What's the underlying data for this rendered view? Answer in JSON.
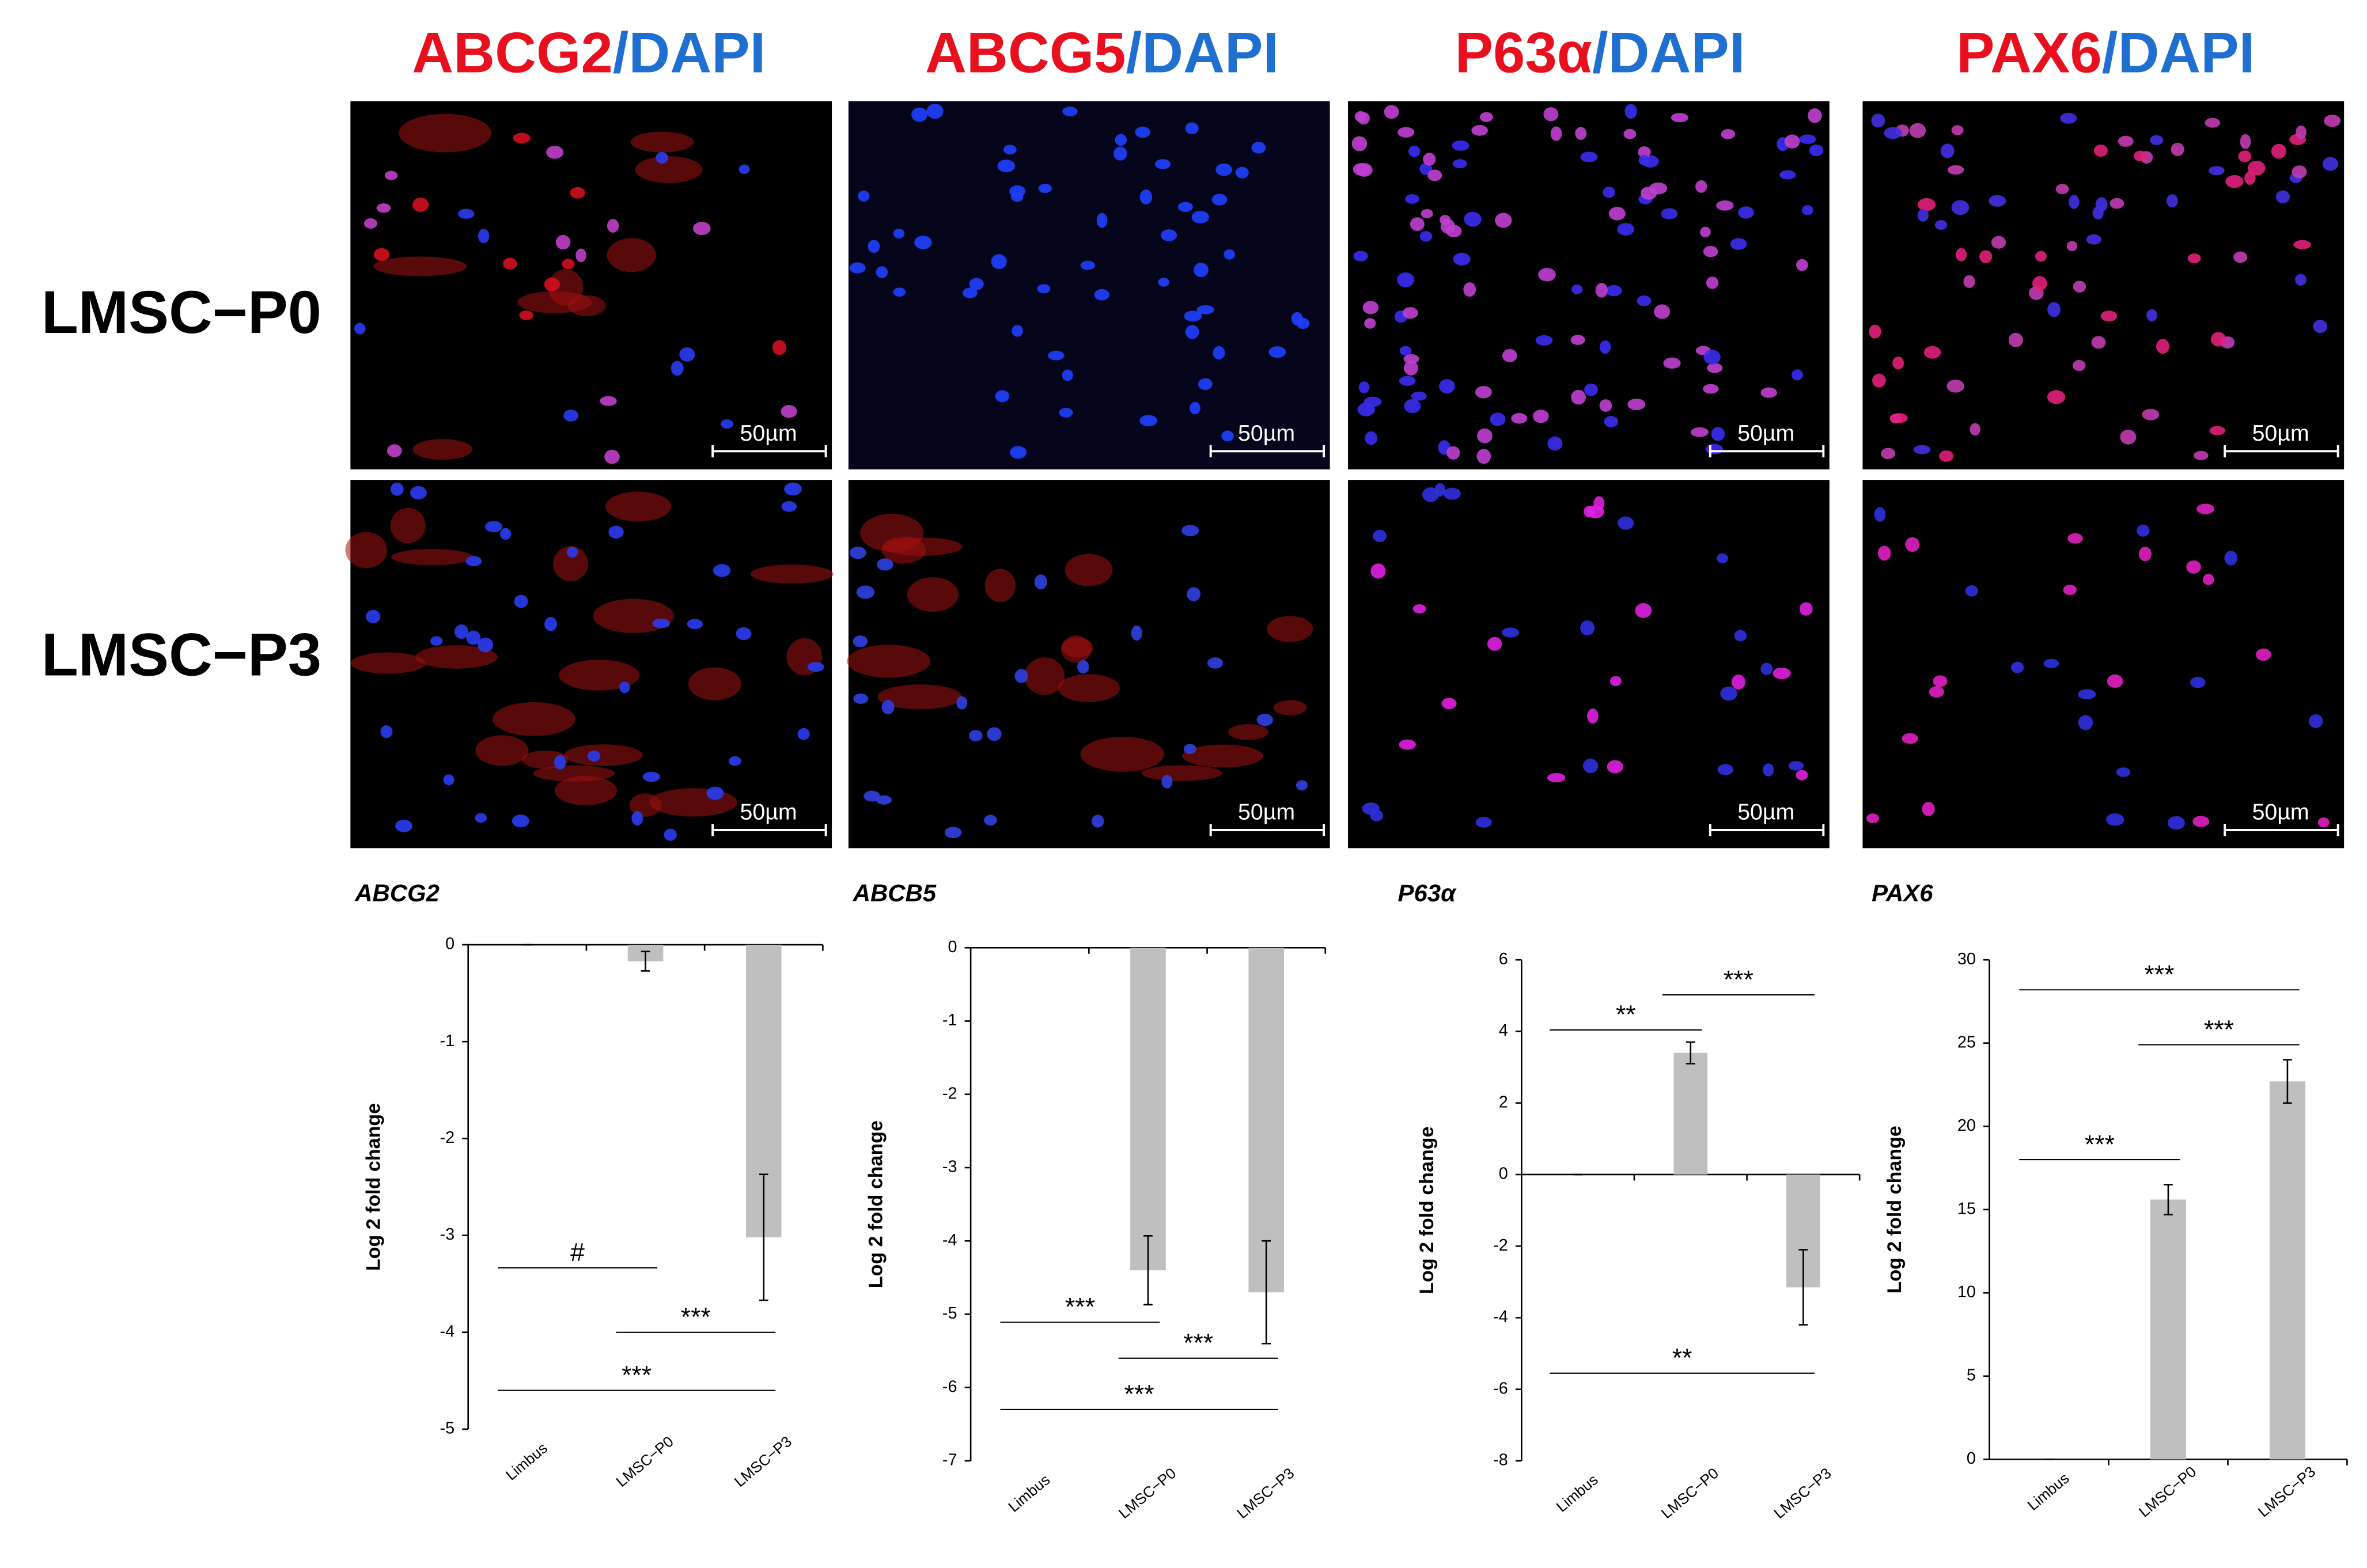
{
  "panels": {
    "titles": [
      {
        "marker": "ABCG2",
        "stain": "/DAPI"
      },
      {
        "marker": "ABCG5",
        "stain": "/DAPI"
      },
      {
        "marker": "P63α",
        "stain": "/DAPI"
      },
      {
        "marker": "PAX6",
        "stain": "/DAPI"
      }
    ],
    "rows": [
      "LMSC−P0",
      "LMSC−P3"
    ],
    "scale_bar": "50µm"
  },
  "chart_data": [
    {
      "type": "bar",
      "title": "ABCG2",
      "y_label": "Log 2 fold change",
      "categories": [
        "Limbus",
        "LMSC−P0",
        "LMSC−P3"
      ],
      "values": [
        0,
        -0.17,
        -3.02
      ],
      "errors": [
        0,
        0.1,
        0.65
      ],
      "color": "#bfbfbf",
      "ylim": [
        -5,
        0
      ],
      "yticks": [
        -5,
        -4,
        -3,
        -2,
        -1,
        0
      ],
      "annotations": [
        {
          "text": "#",
          "between": [
            "Limbus",
            "LMSC−P0"
          ]
        },
        {
          "text": "***",
          "between": [
            "LMSC−P0",
            "LMSC−P3"
          ]
        },
        {
          "text": "***",
          "between": [
            "Limbus",
            "LMSC−P3"
          ]
        }
      ]
    },
    {
      "type": "bar",
      "title": "ABCB5",
      "y_label": "Log 2 fold change",
      "categories": [
        "Limbus",
        "LMSC−P0",
        "LMSC−P3"
      ],
      "values": [
        0,
        -4.4,
        -4.7
      ],
      "errors": [
        0,
        0.47,
        0.7
      ],
      "color": "#bfbfbf",
      "ylim": [
        -7,
        0
      ],
      "yticks": [
        -7,
        -6,
        -5,
        -4,
        -3,
        -2,
        -1,
        0
      ],
      "annotations": [
        {
          "text": "***",
          "between": [
            "Limbus",
            "LMSC−P0"
          ]
        },
        {
          "text": "***",
          "between": [
            "LMSC−P0",
            "LMSC−P3"
          ]
        },
        {
          "text": "***",
          "between": [
            "Limbus",
            "LMSC−P3"
          ]
        }
      ]
    },
    {
      "type": "bar",
      "title": "P63α",
      "y_label": "Log 2 fold change",
      "categories": [
        "Limbus",
        "LMSC−P0",
        "LMSC−P3"
      ],
      "values": [
        0,
        3.4,
        -3.15
      ],
      "errors": [
        0,
        0.3,
        1.05
      ],
      "color": "#bfbfbf",
      "ylim": [
        -8,
        6
      ],
      "yticks": [
        -8,
        -6,
        -4,
        -2,
        0,
        2,
        4,
        6
      ],
      "annotations": [
        {
          "text": "**",
          "between": [
            "Limbus",
            "LMSC−P0"
          ]
        },
        {
          "text": "***",
          "between": [
            "LMSC−P0",
            "LMSC−P3"
          ]
        },
        {
          "text": "**",
          "between": [
            "Limbus",
            "LMSC−P3"
          ]
        }
      ]
    },
    {
      "type": "bar",
      "title": "PAX6",
      "y_label": "Log 2 fold change",
      "categories": [
        "Limbus",
        "LMSC−P0",
        "LMSC−P3"
      ],
      "values": [
        0,
        15.6,
        22.7
      ],
      "errors": [
        0,
        0.9,
        1.3
      ],
      "color": "#bfbfbf",
      "ylim": [
        0,
        30
      ],
      "yticks": [
        0,
        5,
        10,
        15,
        20,
        25,
        30
      ],
      "annotations": [
        {
          "text": "***",
          "between": [
            "Limbus",
            "LMSC−P3"
          ]
        },
        {
          "text": "***",
          "between": [
            "LMSC−P0",
            "LMSC−P3"
          ]
        },
        {
          "text": "***",
          "between": [
            "Limbus",
            "LMSC−P0"
          ]
        }
      ]
    }
  ]
}
